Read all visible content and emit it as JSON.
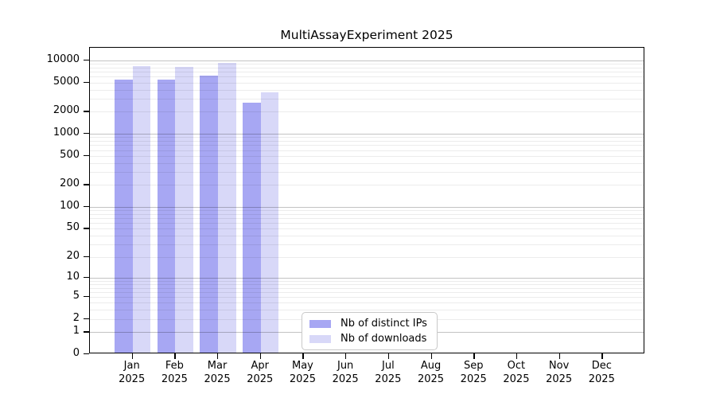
{
  "chart_data": {
    "type": "bar",
    "title": "MultiAssayExperiment 2025",
    "categories": [
      "Jan",
      "Feb",
      "Mar",
      "Apr",
      "May",
      "Jun",
      "Jul",
      "Aug",
      "Sep",
      "Oct",
      "Nov",
      "Dec"
    ],
    "x_year": "2025",
    "series": [
      {
        "name": "Nb of distinct IPs",
        "color": "#A7A7F3",
        "values": [
          5460,
          5500,
          6120,
          2650,
          null,
          null,
          null,
          null,
          null,
          null,
          null,
          null
        ]
      },
      {
        "name": "Nb of downloads",
        "color": "#D8D8F8",
        "values": [
          8260,
          8060,
          9280,
          3700,
          null,
          null,
          null,
          null,
          null,
          null,
          null,
          null
        ]
      }
    ],
    "y_ticks": [
      0,
      1,
      2,
      5,
      10,
      20,
      50,
      100,
      200,
      500,
      1000,
      2000,
      5000,
      10000
    ],
    "y_scale": "log10(1+v)",
    "ylim": [
      0,
      14800
    ],
    "grid": {
      "major_lines": [
        1,
        10,
        100,
        1000,
        10000
      ],
      "minor_lines": "2-9 per decade"
    },
    "legend_position": "inside-bottom-center",
    "xlabel": "",
    "ylabel": ""
  }
}
